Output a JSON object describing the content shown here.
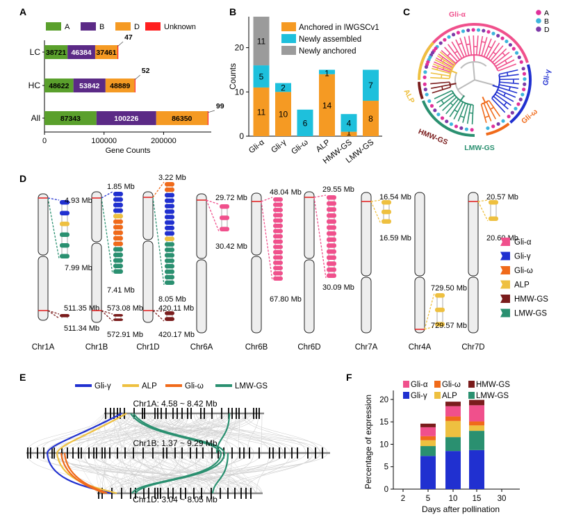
{
  "colors": {
    "A": "#5aa02c",
    "B": "#5b2a86",
    "D": "#f59a23",
    "Unknown": "#ff1f1f",
    "anchored": "#f59a23",
    "newly_assembled": "#1ec0dc",
    "newly_anchored": "#9b9b9b",
    "Gli-α": "#f0508c",
    "Gli-γ": "#2030d0",
    "Gli-ω": "#f06a1a",
    "ALP": "#eec040",
    "HMW-GS": "#7a1c1c",
    "LMW-GS": "#2a9070",
    "tree_grey": "#bbbbbb",
    "dot_A": "#e0309a",
    "dot_B": "#3cb4dc",
    "dot_D": "#7d3aa8"
  },
  "panels": {
    "A": "A",
    "B": "B",
    "C": "C",
    "D": "D",
    "E": "E",
    "F": "F"
  },
  "chart_data": [
    {
      "panel": "A",
      "type": "bar",
      "orientation": "horizontal",
      "stacked": true,
      "categories": [
        "LC",
        "HC",
        "All"
      ],
      "series": [
        {
          "name": "A",
          "values": [
            38721,
            48622,
            87343
          ]
        },
        {
          "name": "B",
          "values": [
            46384,
            53842,
            100226
          ]
        },
        {
          "name": "D",
          "values": [
            37461,
            48889,
            86350
          ]
        },
        {
          "name": "Unknown",
          "values": [
            47,
            52,
            99
          ]
        }
      ],
      "xlabel": "Gene Counts",
      "xlim": [
        0,
        280000
      ],
      "xticks": [
        0,
        100000,
        200000
      ],
      "xtick_labels": [
        "0",
        "100000",
        "200000"
      ],
      "legend": [
        "A",
        "B",
        "D",
        "Unknown"
      ]
    },
    {
      "panel": "B",
      "type": "bar",
      "stacked": true,
      "categories": [
        "Gli-α",
        "Gli-γ",
        "Gli-ω",
        "ALP",
        "HMW-GS",
        "LMW-GS"
      ],
      "series": [
        {
          "name": "Anchored in IWGSCv1",
          "values": [
            11,
            10,
            0,
            14,
            1,
            8
          ]
        },
        {
          "name": "Newly assembled",
          "values": [
            5,
            2,
            6,
            1,
            4,
            7
          ]
        },
        {
          "name": "Newly anchored",
          "values": [
            11,
            0,
            0,
            0,
            0,
            0
          ]
        }
      ],
      "ylabel": "Counts",
      "ylim": [
        0,
        27
      ],
      "yticks": [
        0,
        10,
        20
      ],
      "ytick_labels": [
        "0",
        "10",
        "20"
      ]
    },
    {
      "panel": "C",
      "type": "other",
      "description_type": "circular phylogenetic tree",
      "clades": [
        "Gli-α",
        "Gli-γ",
        "Gli-ω",
        "LMW-GS",
        "HMW-GS",
        "ALP"
      ],
      "legend": [
        "A",
        "B",
        "D"
      ]
    },
    {
      "panel": "D",
      "type": "other",
      "description_type": "chromosome map",
      "chromosomes": [
        "Chr1A",
        "Chr1B",
        "Chr1D",
        "Chr6A",
        "Chr6B",
        "Chr6D",
        "Chr7A",
        "Chr4A",
        "Chr7D"
      ],
      "regions": [
        {
          "chr": "Chr1A",
          "start": "4.93 Mb",
          "end": "7.99 Mb",
          "genes": [
            "Gli-γ",
            "Gli-γ",
            "ALP",
            "LMW-GS",
            "LMW-GS",
            "LMW-GS"
          ]
        },
        {
          "chr": "Chr1A",
          "start": "511.35 Mb",
          "end": "511.34 Mb",
          "genes": [
            "HMW-GS"
          ]
        },
        {
          "chr": "Chr1B",
          "start": "1.85 Mb",
          "end": "7.41 Mb",
          "genes": [
            "Gli-γ",
            "Gli-γ",
            "Gli-γ",
            "Gli-γ",
            "ALP",
            "Gli-ω",
            "Gli-ω",
            "Gli-ω",
            "Gli-ω",
            "Gli-ω",
            "LMW-GS",
            "LMW-GS",
            "LMW-GS",
            "LMW-GS",
            "LMW-GS"
          ]
        },
        {
          "chr": "Chr1B",
          "start": "573.08 Mb",
          "end": "572.91 Mb",
          "genes": [
            "HMW-GS",
            "HMW-GS"
          ]
        },
        {
          "chr": "Chr1D",
          "start": "3.22 Mb",
          "end": "8.05 Mb",
          "genes": [
            "Gli-ω",
            "Gli-ω",
            "Gli-γ",
            "Gli-γ",
            "Gli-γ",
            "Gli-γ",
            "Gli-γ",
            "Gli-γ",
            "Gli-γ",
            "Gli-γ",
            "ALP",
            "LMW-GS",
            "LMW-GS",
            "LMW-GS",
            "LMW-GS",
            "LMW-GS",
            "LMW-GS",
            "LMW-GS",
            "LMW-GS"
          ]
        },
        {
          "chr": "Chr1D",
          "start": "420.11 Mb",
          "end": "420.17 Mb",
          "genes": [
            "HMW-GS",
            "HMW-GS"
          ]
        },
        {
          "chr": "Chr6A",
          "start": "29.72 Mb",
          "end": "30.42 Mb",
          "genes": [
            "Gli-α",
            "Gli-α",
            "Gli-α"
          ]
        },
        {
          "chr": "Chr6B",
          "start": "48.04 Mb",
          "end": "67.80 Mb",
          "genes": [
            "Gli-α",
            "Gli-α",
            "Gli-α",
            "Gli-α",
            "Gli-α",
            "Gli-α",
            "Gli-α",
            "Gli-α",
            "Gli-α",
            "Gli-α",
            "Gli-α",
            "Gli-α",
            "Gli-α",
            "Gli-α",
            "Gli-α",
            "Gli-α"
          ]
        },
        {
          "chr": "Chr6D",
          "start": "29.55 Mb",
          "end": "30.09 Mb",
          "genes": [
            "Gli-α",
            "Gli-α",
            "Gli-α",
            "Gli-α",
            "Gli-α",
            "Gli-α",
            "Gli-α",
            "Gli-α",
            "Gli-α",
            "Gli-α",
            "Gli-α",
            "Gli-α",
            "Gli-α",
            "Gli-α"
          ]
        },
        {
          "chr": "Chr7A",
          "start": "16.54 Mb",
          "end": "16.59 Mb",
          "genes": [
            "ALP",
            "ALP",
            "ALP"
          ]
        },
        {
          "chr": "Chr4A",
          "start": "729.50 Mb",
          "end": "729.57 Mb",
          "genes": [
            "ALP",
            "ALP",
            "ALP"
          ]
        },
        {
          "chr": "Chr7D",
          "start": "20.57 Mb",
          "end": "20.60 Mb",
          "genes": [
            "ALP",
            "ALP"
          ]
        }
      ],
      "legend": [
        "Gli-α",
        "Gli-γ",
        "Gli-ω",
        "ALP",
        "HMW-GS",
        "LMW-GS"
      ]
    },
    {
      "panel": "E",
      "type": "other",
      "description_type": "synteny plot",
      "legend": [
        "Gli-γ",
        "ALP",
        "Gli-ω",
        "LMW-GS"
      ],
      "tracks": [
        "Chr1A: 4.58 ~ 8.42 Mb",
        "Chr1B: 1.37 ~ 9.29 Mb",
        "Chr1D: 3.04 ~ 8.05 Mb"
      ]
    },
    {
      "panel": "F",
      "type": "bar",
      "stacked": true,
      "categories": [
        "2",
        "5",
        "10",
        "15",
        "30"
      ],
      "series": [
        {
          "name": "Gli-γ",
          "values": [
            0,
            7.4,
            8.5,
            8.7,
            0
          ]
        },
        {
          "name": "LMW-GS",
          "values": [
            0,
            2.2,
            3.1,
            4.3,
            0
          ]
        },
        {
          "name": "ALP",
          "values": [
            0,
            1.3,
            3.6,
            1.2,
            0
          ]
        },
        {
          "name": "Gli-ω",
          "values": [
            0,
            0.9,
            1.0,
            0.9,
            0
          ]
        },
        {
          "name": "Gli-α",
          "values": [
            0,
            2.0,
            2.3,
            3.6,
            0
          ]
        },
        {
          "name": "HMW-GS",
          "values": [
            0,
            0.8,
            1.0,
            1.2,
            0
          ]
        }
      ],
      "xlabel": "Days after pollination",
      "ylabel": "Percentage of expression",
      "ylim": [
        0,
        22
      ],
      "yticks": [
        0,
        5,
        10,
        15,
        20
      ],
      "ytick_labels": [
        "0",
        "5",
        "10",
        "15",
        "20"
      ],
      "legend": [
        "Gli-α",
        "Gli-ω",
        "HMW-GS",
        "Gli-γ",
        "ALP",
        "LMW-GS"
      ]
    }
  ]
}
